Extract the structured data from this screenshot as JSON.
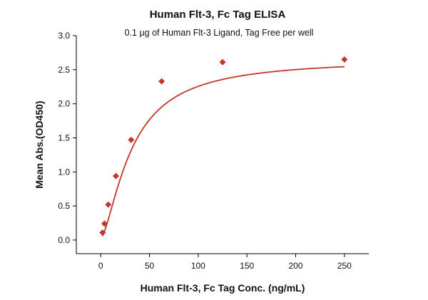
{
  "chart_data": {
    "type": "scatter",
    "title": "Human Flt-3, Fc Tag ELISA",
    "subtitle": "0.1 µg of Human Flt-3 Ligand, Tag Free per well",
    "xlabel": "Human Flt-3, Fc Tag Conc. (ng/mL)",
    "ylabel": "Mean Abs.(OD450)",
    "xlim": [
      -25,
      275
    ],
    "ylim": [
      -0.2,
      3.0
    ],
    "xticks": [
      0,
      50,
      100,
      150,
      200,
      250
    ],
    "xtick_labels": [
      "0",
      "50",
      "100",
      "150",
      "200",
      "250"
    ],
    "yticks": [
      0.0,
      0.5,
      1.0,
      1.5,
      2.0,
      2.5,
      3.0
    ],
    "ytick_labels": [
      "0.0",
      "0.5",
      "1.0",
      "1.5",
      "2.0",
      "2.5",
      "3.0"
    ],
    "grid": false,
    "legend": "none",
    "series": [
      {
        "marker": "diamond",
        "color": "#c0392b",
        "x": [
          1.95,
          3.9,
          7.8,
          15.6,
          31.25,
          62.5,
          125,
          250
        ],
        "y": [
          0.11,
          0.24,
          0.52,
          0.94,
          1.47,
          2.33,
          2.61,
          2.65
        ]
      }
    ],
    "fit_curve": {
      "type": "4PL",
      "color": "#c0392b",
      "bottom": 0.02,
      "top": 2.66,
      "ec50": 32,
      "hill": 1.5
    }
  }
}
